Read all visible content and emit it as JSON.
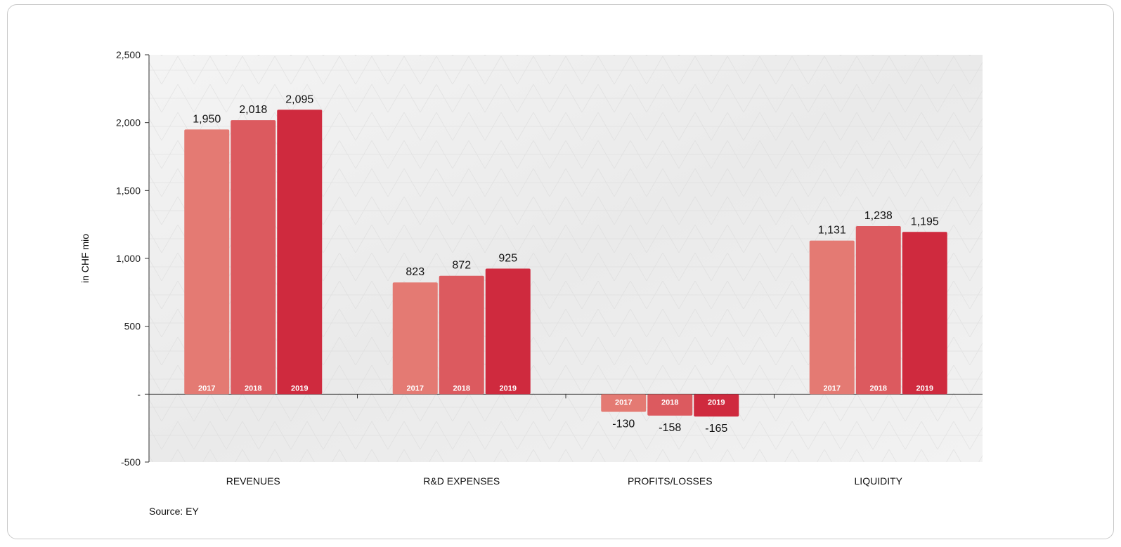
{
  "chart_data": {
    "type": "bar",
    "ylabel": "in CHF mio",
    "xlabel": "",
    "ylim": [
      -500,
      2500
    ],
    "yticks": [
      2500,
      2000,
      1500,
      1000,
      500,
      0,
      -500
    ],
    "ytick_labels": [
      "2,500",
      "2,000",
      "1,500",
      "1,000",
      "500",
      "-",
      "-500"
    ],
    "categories": [
      "REVENUES",
      "R&D EXPENSES",
      "PROFITS/LOSSES",
      "LIQUIDITY"
    ],
    "series": [
      {
        "name": "2017",
        "color": "#e47a73",
        "values": [
          1950,
          823,
          -130,
          1131
        ],
        "labels": [
          "1,950",
          "823",
          "-130",
          "1,131"
        ]
      },
      {
        "name": "2018",
        "color": "#dc5a5f",
        "values": [
          2018,
          872,
          -158,
          1238
        ],
        "labels": [
          "2,018",
          "872",
          "-158",
          "1,238"
        ]
      },
      {
        "name": "2019",
        "color": "#cf2a3e",
        "values": [
          2095,
          925,
          -165,
          1195
        ],
        "labels": [
          "2,095",
          "925",
          "-165",
          "1,195"
        ]
      }
    ],
    "grid": false,
    "legend": "none",
    "source": "Source: EY"
  }
}
